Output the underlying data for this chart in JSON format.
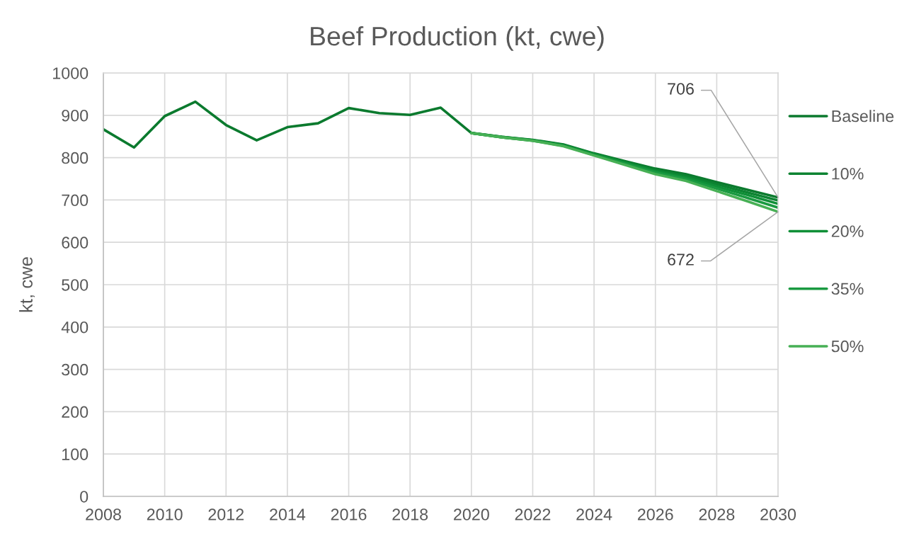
{
  "chart_data": {
    "type": "line",
    "title": "Beef Production (kt, cwe)",
    "ylabel": "kt, cwe",
    "x": [
      2008,
      2009,
      2010,
      2011,
      2012,
      2013,
      2014,
      2015,
      2016,
      2017,
      2018,
      2019,
      2020,
      2021,
      2022,
      2023,
      2024,
      2025,
      2026,
      2027,
      2028,
      2029,
      2030
    ],
    "series": [
      {
        "name": "Baseline",
        "color": "#0b7a2e",
        "values": [
          867,
          824,
          898,
          932,
          877,
          841,
          872,
          881,
          917,
          905,
          901,
          918,
          858,
          849,
          842,
          831,
          810,
          792,
          774,
          761,
          742,
          724,
          706
        ]
      },
      {
        "name": "10%",
        "color": "#0c8331",
        "values": [
          null,
          null,
          null,
          null,
          null,
          null,
          null,
          null,
          null,
          null,
          null,
          null,
          858,
          849,
          841,
          830,
          809,
          790,
          771,
          757,
          737,
          718,
          699
        ]
      },
      {
        "name": "20%",
        "color": "#0f8f37",
        "values": [
          null,
          null,
          null,
          null,
          null,
          null,
          null,
          null,
          null,
          null,
          null,
          null,
          858,
          848,
          841,
          829,
          808,
          788,
          768,
          753,
          732,
          712,
          691
        ]
      },
      {
        "name": "35%",
        "color": "#1a9a41",
        "values": [
          null,
          null,
          null,
          null,
          null,
          null,
          null,
          null,
          null,
          null,
          null,
          null,
          858,
          848,
          840,
          828,
          806,
          786,
          765,
          749,
          727,
          705,
          682
        ]
      },
      {
        "name": "50%",
        "color": "#47b055",
        "values": [
          null,
          null,
          null,
          null,
          null,
          null,
          null,
          null,
          null,
          null,
          null,
          null,
          858,
          848,
          840,
          827,
          805,
          783,
          761,
          745,
          721,
          697,
          672
        ]
      }
    ],
    "annotations": [
      {
        "text": "706",
        "x": 2030,
        "y": 706
      },
      {
        "text": "672",
        "x": 2030,
        "y": 672
      }
    ],
    "xlim": [
      2008,
      2030
    ],
    "xticks": [
      2008,
      2010,
      2012,
      2014,
      2016,
      2018,
      2020,
      2022,
      2024,
      2026,
      2028,
      2030
    ],
    "ylim": [
      0,
      1000
    ],
    "yticks": [
      0,
      100,
      200,
      300,
      400,
      500,
      600,
      700,
      800,
      900,
      1000
    ],
    "grid": true,
    "legend": "right"
  }
}
